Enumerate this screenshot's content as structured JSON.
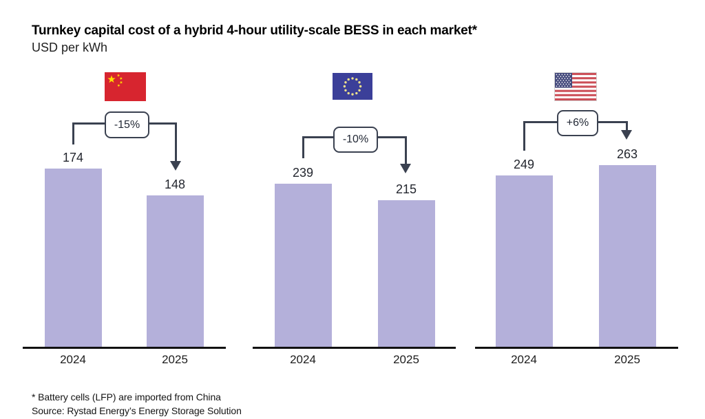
{
  "title": "Turnkey capital cost of a hybrid 4-hour utility-scale BESS in each market*",
  "subtitle": "USD per kWh",
  "footnote": "* Battery cells (LFP) are imported from China",
  "source": "Source: Rystad Energy’s Energy Storage Solution",
  "colors": {
    "bar": "#b4b0da",
    "connector": "#3a4150",
    "baseline": "#111111",
    "china_flag_red": "#d7252f",
    "china_flag_yellow": "#ffde00",
    "eu_flag_blue": "#3b3f99",
    "eu_flag_stars": "#efe18c",
    "us_flag_red": "#cc4f58",
    "us_flag_canton": "#454a7d"
  },
  "chart_data": {
    "type": "bar",
    "title": "Turnkey capital cost of a hybrid 4-hour utility-scale BESS in each market*",
    "ylabel": "USD per kWh",
    "categories": [
      "2024",
      "2025"
    ],
    "legend": "none",
    "grid": false,
    "panels": [
      {
        "market": "China",
        "flag": "china-flag",
        "values": [
          174,
          148
        ],
        "change_label": "-15%"
      },
      {
        "market": "European Union",
        "flag": "eu-flag",
        "values": [
          239,
          215
        ],
        "change_label": "-10%"
      },
      {
        "market": "United States",
        "flag": "us-flag",
        "values": [
          249,
          263
        ],
        "change_label": "+6%"
      }
    ]
  }
}
